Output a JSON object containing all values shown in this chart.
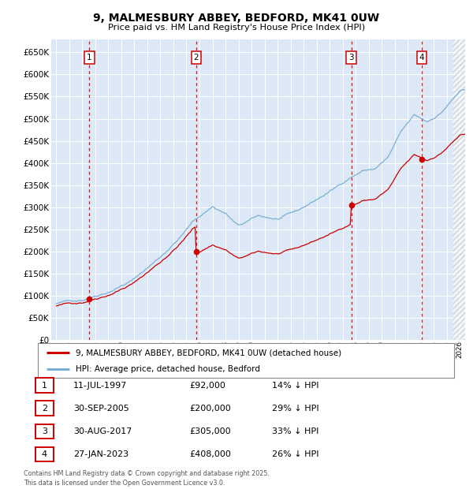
{
  "title": "9, MALMESBURY ABBEY, BEDFORD, MK41 0UW",
  "subtitle": "Price paid vs. HM Land Registry's House Price Index (HPI)",
  "footer": "Contains HM Land Registry data © Crown copyright and database right 2025.\nThis data is licensed under the Open Government Licence v3.0.",
  "legend_line1": "9, MALMESBURY ABBEY, BEDFORD, MK41 0UW (detached house)",
  "legend_line2": "HPI: Average price, detached house, Bedford",
  "transactions": [
    {
      "num": 1,
      "date": "11-JUL-1997",
      "price": 92000,
      "pct": "14%",
      "year_x": 1997.54
    },
    {
      "num": 2,
      "date": "30-SEP-2005",
      "price": 200000,
      "pct": "29%",
      "year_x": 2005.75
    },
    {
      "num": 3,
      "date": "30-AUG-2017",
      "price": 305000,
      "pct": "33%",
      "year_x": 2017.66
    },
    {
      "num": 4,
      "date": "27-JAN-2023",
      "price": 408000,
      "pct": "26%",
      "year_x": 2023.07
    }
  ],
  "ylim": [
    0,
    680000
  ],
  "yticks": [
    0,
    50000,
    100000,
    150000,
    200000,
    250000,
    300000,
    350000,
    400000,
    450000,
    500000,
    550000,
    600000,
    650000
  ],
  "xlim_start": 1994.6,
  "xlim_end": 2026.4,
  "bg_color": "#dce8f5",
  "grid_color": "white",
  "line_color_red": "#cc0000",
  "line_color_blue": "#7ab0d4",
  "dashed_color": "#cc0000",
  "hatch_color": "#cccccc"
}
